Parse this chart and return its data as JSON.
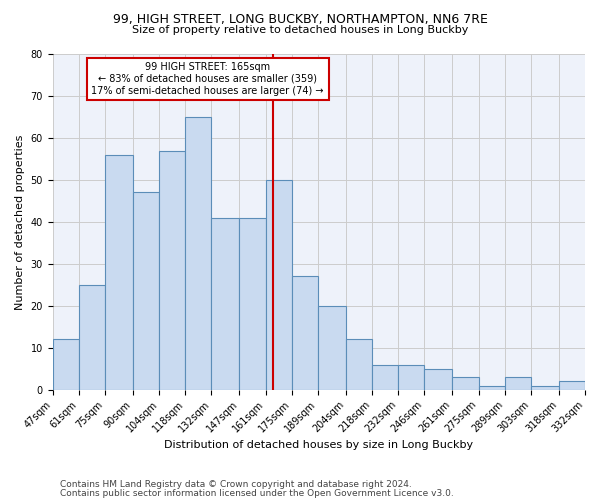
{
  "title1": "99, HIGH STREET, LONG BUCKBY, NORTHAMPTON, NN6 7RE",
  "title2": "Size of property relative to detached houses in Long Buckby",
  "xlabel": "Distribution of detached houses by size in Long Buckby",
  "ylabel": "Number of detached properties",
  "footer1": "Contains HM Land Registry data © Crown copyright and database right 2024.",
  "footer2": "Contains public sector information licensed under the Open Government Licence v3.0.",
  "annotation_line1": "99 HIGH STREET: 165sqm",
  "annotation_line2": "← 83% of detached houses are smaller (359)",
  "annotation_line3": "17% of semi-detached houses are larger (74) →",
  "bar_edges": [
    47,
    61,
    75,
    90,
    104,
    118,
    132,
    147,
    161,
    175,
    189,
    204,
    218,
    232,
    246,
    261,
    275,
    289,
    303,
    318,
    332
  ],
  "bar_heights": [
    12,
    25,
    56,
    47,
    57,
    65,
    41,
    41,
    50,
    27,
    20,
    12,
    6,
    6,
    5,
    3,
    1,
    3,
    1,
    2
  ],
  "bar_color": "#c9daf0",
  "bar_edge_color": "#5b8db8",
  "vline_color": "#cc0000",
  "vline_x": 165,
  "annotation_box_edgecolor": "#cc0000",
  "annotation_fill": "white",
  "grid_color": "#cccccc",
  "bg_color": "#eef2fa",
  "ylim": [
    0,
    80
  ],
  "yticks": [
    0,
    10,
    20,
    30,
    40,
    50,
    60,
    70,
    80
  ],
  "tick_labels": [
    "47sqm",
    "61sqm",
    "75sqm",
    "90sqm",
    "104sqm",
    "118sqm",
    "132sqm",
    "147sqm",
    "161sqm",
    "175sqm",
    "189sqm",
    "204sqm",
    "218sqm",
    "232sqm",
    "246sqm",
    "261sqm",
    "275sqm",
    "289sqm",
    "303sqm",
    "318sqm",
    "332sqm"
  ],
  "title_fontsize": 9,
  "subtitle_fontsize": 8,
  "axis_label_fontsize": 8,
  "ylabel_fontsize": 8,
  "tick_fontsize": 7,
  "annotation_fontsize": 7,
  "footer_fontsize": 6.5
}
